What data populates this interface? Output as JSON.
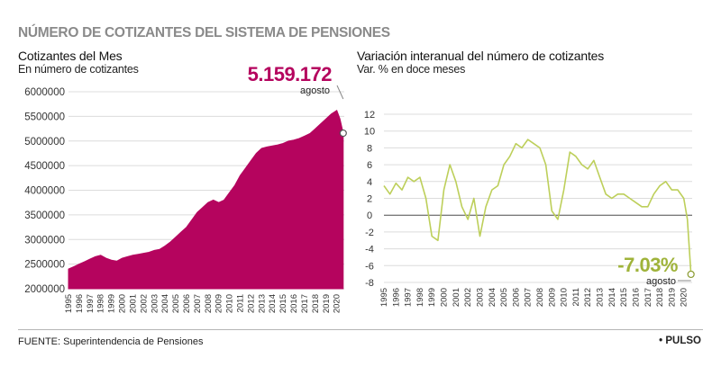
{
  "header": {
    "title": "NÚMERO DE COTIZANTES DEL SISTEMA DE PENSIONES"
  },
  "footer": {
    "source": "FUENTE: Superintendencia de Pensiones",
    "brand": "• PULSO"
  },
  "chart_data": [
    {
      "type": "area",
      "title": "Cotizantes del Mes",
      "subtitle": "En número de cotizantes",
      "color": "#b5045e",
      "x_ticks": [
        "1995",
        "1996",
        "1997",
        "1998",
        "1999",
        "2000",
        "2001",
        "2002",
        "2003",
        "2004",
        "2005",
        "2006",
        "2007",
        "2008",
        "2009",
        "2010",
        "2011",
        "2012",
        "2013",
        "2014",
        "2015",
        "2016",
        "2017",
        "2018",
        "2019",
        "2020"
      ],
      "y_ticks": [
        "2000000",
        "2500000",
        "3000000",
        "3500000",
        "4000000",
        "4500000",
        "5000000",
        "5500000",
        "6000000"
      ],
      "ylim": [
        2000000,
        6000000
      ],
      "xlim": [
        1995,
        2020.7
      ],
      "series": [
        {
          "name": "Cotizantes del Mes",
          "x": [
            1995.0,
            1995.5,
            1996.0,
            1996.5,
            1997.0,
            1997.5,
            1998.0,
            1998.5,
            1999.0,
            1999.5,
            2000.0,
            2000.5,
            2001.0,
            2001.5,
            2002.0,
            2002.5,
            2003.0,
            2003.5,
            2004.0,
            2004.5,
            2005.0,
            2005.5,
            2006.0,
            2006.5,
            2007.0,
            2007.5,
            2008.0,
            2008.5,
            2009.0,
            2009.5,
            2010.0,
            2010.5,
            2011.0,
            2011.5,
            2012.0,
            2012.5,
            2013.0,
            2013.5,
            2014.0,
            2014.5,
            2015.0,
            2015.5,
            2016.0,
            2016.5,
            2017.0,
            2017.5,
            2018.0,
            2018.5,
            2019.0,
            2019.5,
            2020.0,
            2020.3,
            2020.6
          ],
          "values": [
            2400000,
            2450000,
            2500000,
            2550000,
            2600000,
            2650000,
            2680000,
            2620000,
            2580000,
            2560000,
            2620000,
            2650000,
            2680000,
            2700000,
            2720000,
            2740000,
            2780000,
            2800000,
            2870000,
            2950000,
            3050000,
            3150000,
            3250000,
            3400000,
            3550000,
            3650000,
            3750000,
            3800000,
            3750000,
            3800000,
            3950000,
            4100000,
            4300000,
            4450000,
            4600000,
            4750000,
            4850000,
            4880000,
            4900000,
            4920000,
            4950000,
            5000000,
            5020000,
            5050000,
            5100000,
            5150000,
            5250000,
            5350000,
            5450000,
            5550000,
            5620000,
            5450000,
            5159172
          ]
        }
      ],
      "annotations": [
        {
          "label": "5.159.172",
          "sublabel": "agosto",
          "x": 2020.6,
          "y": 5159172
        }
      ]
    },
    {
      "type": "line",
      "title": "Variación interanual del número de cotizantes",
      "subtitle": "Var. % en doce meses",
      "color": "#bdcf5a",
      "x_ticks": [
        "1995",
        "1996",
        "1997",
        "1998",
        "1999",
        "2000",
        "2001",
        "2002",
        "2003",
        "2004",
        "2005",
        "2006",
        "2007",
        "2008",
        "2009",
        "2010",
        "2011",
        "2012",
        "2013",
        "2014",
        "2015",
        "2016",
        "2017",
        "2018",
        "2019",
        "2020"
      ],
      "y_ticks": [
        "-8",
        "-6",
        "-4",
        "-2",
        "0",
        "2",
        "4",
        "6",
        "8",
        "10",
        "12"
      ],
      "ylim": [
        -8,
        12
      ],
      "xlim": [
        1995,
        2020.7
      ],
      "zero_line": true,
      "series": [
        {
          "name": "Variación interanual",
          "x": [
            1995.0,
            1995.5,
            1996.0,
            1996.5,
            1997.0,
            1997.5,
            1998.0,
            1998.5,
            1999.0,
            1999.5,
            2000.0,
            2000.5,
            2001.0,
            2001.5,
            2002.0,
            2002.5,
            2003.0,
            2003.5,
            2004.0,
            2004.5,
            2005.0,
            2005.5,
            2006.0,
            2006.5,
            2007.0,
            2007.5,
            2008.0,
            2008.5,
            2009.0,
            2009.5,
            2010.0,
            2010.5,
            2011.0,
            2011.5,
            2012.0,
            2012.5,
            2013.0,
            2013.5,
            2014.0,
            2014.5,
            2015.0,
            2015.5,
            2016.0,
            2016.5,
            2017.0,
            2017.5,
            2018.0,
            2018.5,
            2019.0,
            2019.5,
            2020.0,
            2020.3,
            2020.6
          ],
          "values": [
            3.5,
            2.5,
            3.8,
            3.0,
            4.5,
            4.0,
            4.5,
            2.0,
            -2.5,
            -3.0,
            3.0,
            6.0,
            4.0,
            1.0,
            -0.5,
            2.0,
            -2.5,
            1.0,
            3.0,
            3.5,
            6.0,
            7.0,
            8.5,
            8.0,
            9.0,
            8.5,
            8.0,
            6.0,
            0.5,
            -0.5,
            3.0,
            7.5,
            7.0,
            6.0,
            5.5,
            6.5,
            4.5,
            2.5,
            2.0,
            2.5,
            2.5,
            2.0,
            1.5,
            1.0,
            1.0,
            2.5,
            3.5,
            4.0,
            3.0,
            3.0,
            2.0,
            -0.5,
            -7.03
          ]
        }
      ],
      "annotations": [
        {
          "label": "-7.03%",
          "sublabel": "agosto",
          "x": 2020.6,
          "y": -7.03
        }
      ]
    }
  ]
}
